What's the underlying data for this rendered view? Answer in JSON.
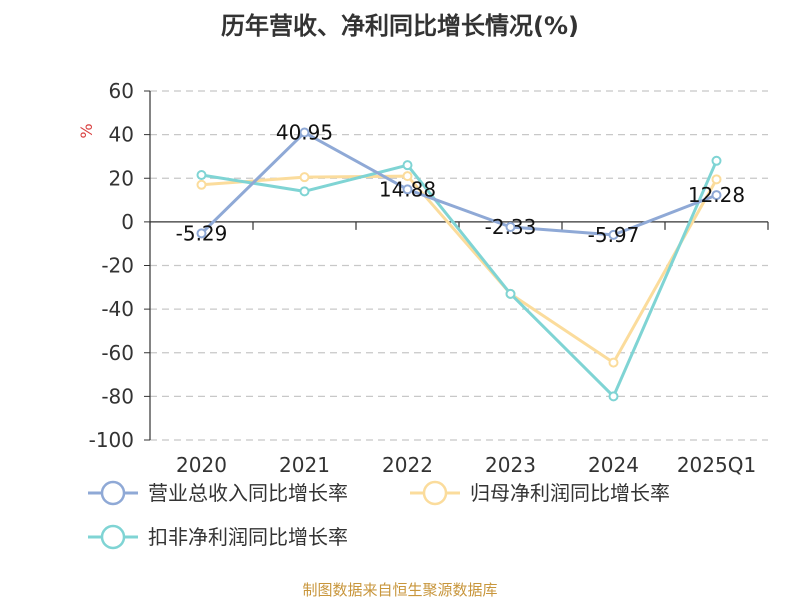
{
  "chart_data": {
    "type": "line",
    "title": "历年营收、净利同比增长情况(%)",
    "ylabel": "%",
    "xlabel": "",
    "categories": [
      "2020",
      "2021",
      "2022",
      "2023",
      "2024",
      "2025Q1"
    ],
    "ylim": [
      -100,
      60
    ],
    "yticks": [
      "60",
      "40",
      "20",
      "0",
      "-20",
      "-40",
      "-60",
      "-80",
      "-100"
    ],
    "ytick_values": [
      60,
      40,
      20,
      0,
      -20,
      -40,
      -60,
      -80,
      -100
    ],
    "grid": true,
    "legend_position": "bottom",
    "series": [
      {
        "name": "营业总收入同比增长率",
        "color": "#8fa9d6",
        "values": [
          -5.29,
          40.95,
          14.88,
          -2.33,
          -5.97,
          12.28
        ],
        "labels": [
          "-5.29",
          "40.95",
          "14.88",
          "-2.33",
          "-5.97",
          "12.28"
        ]
      },
      {
        "name": "归母净利润同比增长率",
        "color": "#fbdc9c",
        "values": [
          17,
          20.5,
          21,
          -33,
          -64.5,
          19.5
        ]
      },
      {
        "name": "扣非净利润同比增长率",
        "color": "#7fd4d4",
        "values": [
          21.5,
          14,
          26,
          -33,
          -80,
          28
        ]
      }
    ]
  },
  "source": "制图数据来自恒生聚源数据库"
}
